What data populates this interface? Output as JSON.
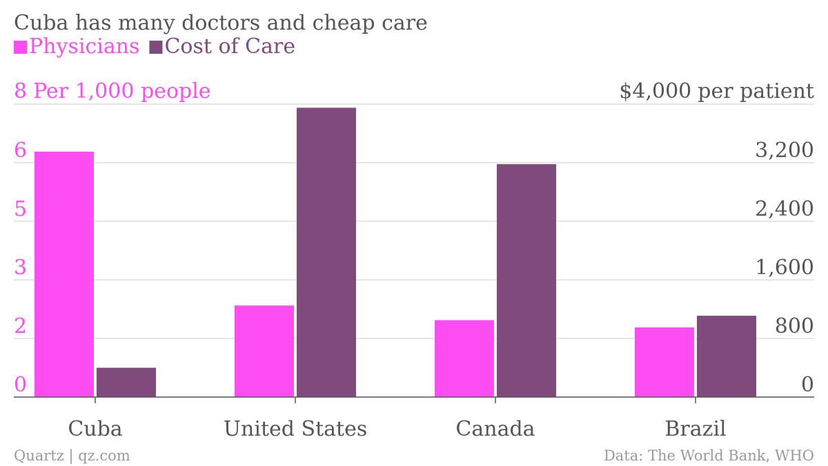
{
  "title": "Cuba has many doctors and cheap care",
  "legend": [
    {
      "label": "Physicians",
      "color": "#fc4cf2"
    },
    {
      "label": "Cost of Care",
      "color": "#7f4a7c"
    }
  ],
  "footer": {
    "source_left": "Quartz | qz.com",
    "source_right": "Data: The World Bank, WHO"
  },
  "chart_data": {
    "type": "bar",
    "title": "Cuba has many doctors and cheap care",
    "categories": [
      "Cuba",
      "United States",
      "Canada",
      "Brazil"
    ],
    "series": [
      {
        "name": "Physicians",
        "axis": "left",
        "color": "#fc4cf2",
        "values": [
          6.7,
          2.5,
          2.1,
          1.9
        ]
      },
      {
        "name": "Cost of Care",
        "axis": "right",
        "color": "#7f4a7c",
        "values": [
          400,
          3950,
          3180,
          1110
        ]
      }
    ],
    "left_axis": {
      "unit_label": "Per 1,000 people",
      "ylim": [
        0,
        8
      ],
      "tick_labels": [
        "0",
        "2",
        "3",
        "5",
        "6",
        "8"
      ],
      "color": "#fc4cf2"
    },
    "right_axis": {
      "unit_label": "per patient",
      "ylim": [
        0,
        4000
      ],
      "tick_labels": [
        "0",
        "800",
        "1,600",
        "2,400",
        "3,200",
        "$4,000"
      ],
      "color": "#555555"
    },
    "grid": true,
    "legend_position": "top-left"
  }
}
